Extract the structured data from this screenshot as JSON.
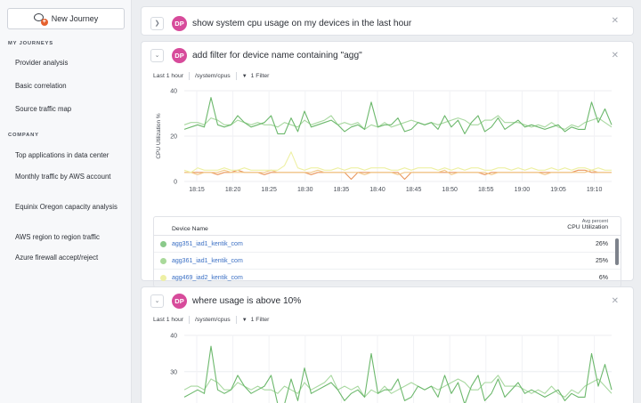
{
  "sidebar": {
    "new_journey_label": "New Journey",
    "my_journeys_heading": "MY JOURNEYS",
    "my_journeys": [
      "Provider analysis",
      "Basic correlation",
      "Source traffic map"
    ],
    "company_heading": "COMPANY",
    "company": [
      "Top applications in data center",
      "Monthly traffic by AWS account",
      "Equinix Oregon capacity analysis",
      "AWS region to region traffic",
      "Azure firewall accept/reject"
    ]
  },
  "cards": [
    {
      "avatar": "DP",
      "prompt": "show system cpu usage on my devices in the last hour",
      "collapsed": true
    },
    {
      "avatar": "DP",
      "prompt": "add filter for device name containing \"agg\"",
      "time_range": "Last 1 hour",
      "metric": "/system/cpus",
      "filter": "1 Filter"
    },
    {
      "avatar": "DP",
      "prompt": "where usage is above 10%",
      "time_range": "Last 1 hour",
      "metric": "/system/cpus",
      "filter": "1 Filter"
    }
  ],
  "table": {
    "col_device": "Device Name",
    "col_avg_top": "Avg percent",
    "col_avg_bottom": "CPU Utilization",
    "rows": [
      {
        "device": "agg351_iad1_kentik_com",
        "value": "26%",
        "color": "#8ac98a"
      },
      {
        "device": "agg361_iad1_kentik_com",
        "value": "25%",
        "color": "#a9d99a"
      },
      {
        "device": "agg469_iad2_kentik_com",
        "value": "6%",
        "color": "#eef0a4"
      }
    ]
  },
  "chart_data": [
    {
      "type": "line",
      "ylabel": "CPU Utilization %",
      "ylim": [
        0,
        40
      ],
      "yticks": [
        0,
        20,
        40
      ],
      "x_ticks": [
        "18:15",
        "18:20",
        "18:25",
        "18:30",
        "18:35",
        "18:40",
        "18:45",
        "18:50",
        "18:55",
        "19:00",
        "19:05",
        "19:10"
      ],
      "grid": true,
      "series": [
        {
          "color": "#6cb86c",
          "values": [
            23,
            24,
            25,
            24,
            37,
            25,
            24,
            25,
            29,
            26,
            24,
            25,
            26,
            29,
            21,
            21,
            28,
            22,
            31,
            24,
            25,
            26,
            27,
            25,
            22,
            24,
            25,
            23,
            35,
            24,
            25,
            25,
            28,
            22,
            23,
            26,
            25,
            26,
            23,
            29,
            24,
            27,
            21,
            26,
            29,
            22,
            24,
            28,
            23,
            25,
            27,
            24,
            25,
            24,
            23,
            24,
            25,
            22,
            24,
            23,
            23,
            35,
            26,
            32,
            25
          ]
        },
        {
          "color": "#a8d8a0",
          "values": [
            25,
            26,
            26,
            25,
            28,
            27,
            25,
            25,
            27,
            26,
            25,
            26,
            25,
            25,
            24,
            26,
            25,
            24,
            27,
            25,
            26,
            27,
            29,
            25,
            26,
            25,
            26,
            23,
            25,
            24,
            26,
            24,
            25,
            26,
            27,
            26,
            25,
            26,
            25,
            26,
            27,
            28,
            27,
            25,
            25,
            27,
            27,
            29,
            26,
            26,
            26,
            25,
            24,
            25,
            24,
            26,
            24,
            23,
            25,
            24,
            26,
            27,
            28,
            26,
            24
          ]
        },
        {
          "color": "#eef0a4",
          "values": [
            5,
            4,
            6,
            5,
            5,
            5,
            6,
            5,
            5,
            6,
            5,
            5,
            5,
            5,
            5,
            7,
            13,
            6,
            5,
            6,
            6,
            5,
            5,
            6,
            5,
            6,
            6,
            5,
            6,
            6,
            6,
            5,
            5,
            6,
            5,
            6,
            6,
            6,
            5,
            6,
            5,
            6,
            5,
            6,
            6,
            5,
            5,
            6,
            6,
            5,
            6,
            5,
            6,
            5,
            5,
            6,
            5,
            6,
            5,
            6,
            6,
            5,
            6,
            5,
            5
          ]
        },
        {
          "color": "#f2c98a",
          "values": [
            4,
            4,
            3,
            4,
            4,
            4,
            5,
            4,
            4,
            4,
            4,
            4,
            4,
            5,
            4,
            4,
            4,
            4,
            4,
            4,
            5,
            4,
            4,
            4,
            4,
            4,
            4,
            3,
            4,
            4,
            4,
            4,
            3,
            4,
            4,
            4,
            4,
            4,
            4,
            5,
            3,
            4,
            4,
            4,
            4,
            4,
            3,
            4,
            4,
            4,
            4,
            4,
            4,
            4,
            3,
            4,
            4,
            4,
            4,
            4,
            4,
            5,
            4,
            4,
            4
          ]
        },
        {
          "color": "#e9975e",
          "values": [
            4,
            4,
            4,
            4,
            4,
            3,
            4,
            4,
            5,
            4,
            4,
            4,
            3,
            4,
            4,
            4,
            4,
            4,
            4,
            3,
            4,
            4,
            4,
            4,
            4,
            1,
            4,
            4,
            4,
            4,
            4,
            4,
            4,
            1,
            4,
            4,
            4,
            4,
            4,
            4,
            4,
            4,
            4,
            4,
            4,
            3,
            4,
            4,
            4,
            4,
            4,
            4,
            4,
            4,
            4,
            4,
            4,
            4,
            4,
            5,
            5,
            4,
            4,
            4,
            4
          ]
        }
      ]
    },
    {
      "type": "line",
      "ylim": [
        15,
        40
      ],
      "yticks": [
        20,
        30,
        40
      ],
      "grid": true,
      "series": [
        {
          "color": "#6cb86c",
          "values": [
            23,
            24,
            25,
            24,
            37,
            25,
            24,
            25,
            29,
            26,
            24,
            25,
            26,
            29,
            21,
            21,
            28,
            22,
            31,
            24,
            25,
            26,
            27,
            25,
            22,
            24,
            25,
            23,
            35,
            24,
            25,
            25,
            28,
            22,
            23,
            26,
            25,
            26,
            23,
            29,
            24,
            27,
            21,
            26,
            29,
            22,
            24,
            28,
            23,
            25,
            27,
            24,
            25,
            24,
            23,
            24,
            25,
            22,
            24,
            23,
            23,
            35,
            26,
            32,
            25
          ]
        },
        {
          "color": "#a8d8a0",
          "values": [
            25,
            26,
            26,
            25,
            28,
            27,
            25,
            25,
            27,
            26,
            25,
            26,
            25,
            25,
            24,
            26,
            25,
            24,
            27,
            25,
            26,
            27,
            29,
            25,
            26,
            25,
            26,
            23,
            25,
            24,
            26,
            24,
            25,
            26,
            27,
            26,
            25,
            26,
            25,
            26,
            27,
            28,
            27,
            25,
            25,
            27,
            27,
            29,
            26,
            26,
            26,
            25,
            24,
            25,
            24,
            26,
            24,
            23,
            25,
            24,
            26,
            27,
            28,
            26,
            24
          ]
        }
      ]
    }
  ]
}
